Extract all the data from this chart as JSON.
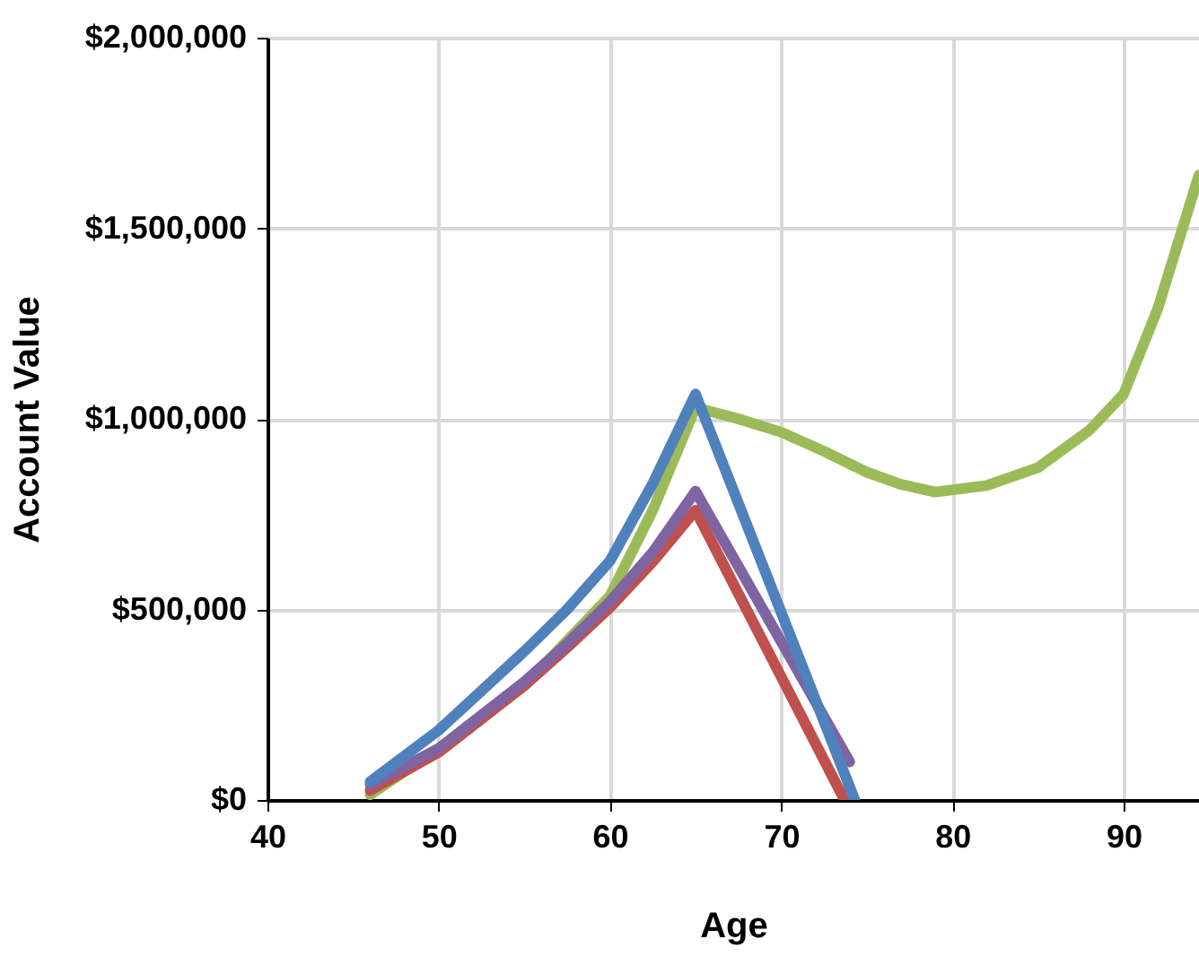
{
  "chart_data": {
    "type": "line",
    "xlabel": "Age",
    "ylabel": "Account Value",
    "xlim": [
      40,
      94.4
    ],
    "xticks": [
      40,
      50,
      60,
      70,
      80,
      90
    ],
    "ylim": [
      0,
      2000000
    ],
    "yticks": [
      {
        "value": 0,
        "label": "$0"
      },
      {
        "value": 500000,
        "label": "$500,000"
      },
      {
        "value": 1000000,
        "label": "$1,000,000"
      },
      {
        "value": 1500000,
        "label": "$1,500,000"
      },
      {
        "value": 2000000,
        "label": "$2,000,000"
      }
    ],
    "grid": true,
    "legend": false,
    "marker": "none",
    "line_style": "solid",
    "series": [
      {
        "color": "#9bbb59",
        "x": [
          46,
          50,
          55,
          60,
          62.5,
          65,
          67.5,
          70,
          72.5,
          75,
          77,
          79,
          82,
          85,
          88,
          90,
          92,
          94.4
        ],
        "values": [
          14000,
          135000,
          300000,
          535000,
          760000,
          1030000,
          1000000,
          965000,
          915000,
          860000,
          828000,
          808000,
          825000,
          872000,
          970000,
          1065000,
          1290000,
          1640000
        ]
      },
      {
        "color": "#c0504d",
        "x": [
          46,
          50,
          55,
          57.5,
          60,
          62.5,
          65,
          73.7
        ],
        "values": [
          25000,
          125000,
          300000,
          400000,
          505000,
          625000,
          760000,
          0
        ]
      },
      {
        "color": "#8064a2",
        "x": [
          46,
          50,
          55,
          57.5,
          60,
          62.5,
          65,
          74
        ],
        "values": [
          40000,
          135000,
          310000,
          410000,
          520000,
          650000,
          810000,
          100000
        ]
      },
      {
        "color": "#4f81bd",
        "x": [
          46,
          50,
          55,
          57.5,
          60,
          62.5,
          65,
          74.3
        ],
        "values": [
          48000,
          183000,
          390000,
          500000,
          627000,
          830000,
          1065000,
          0
        ]
      }
    ]
  }
}
